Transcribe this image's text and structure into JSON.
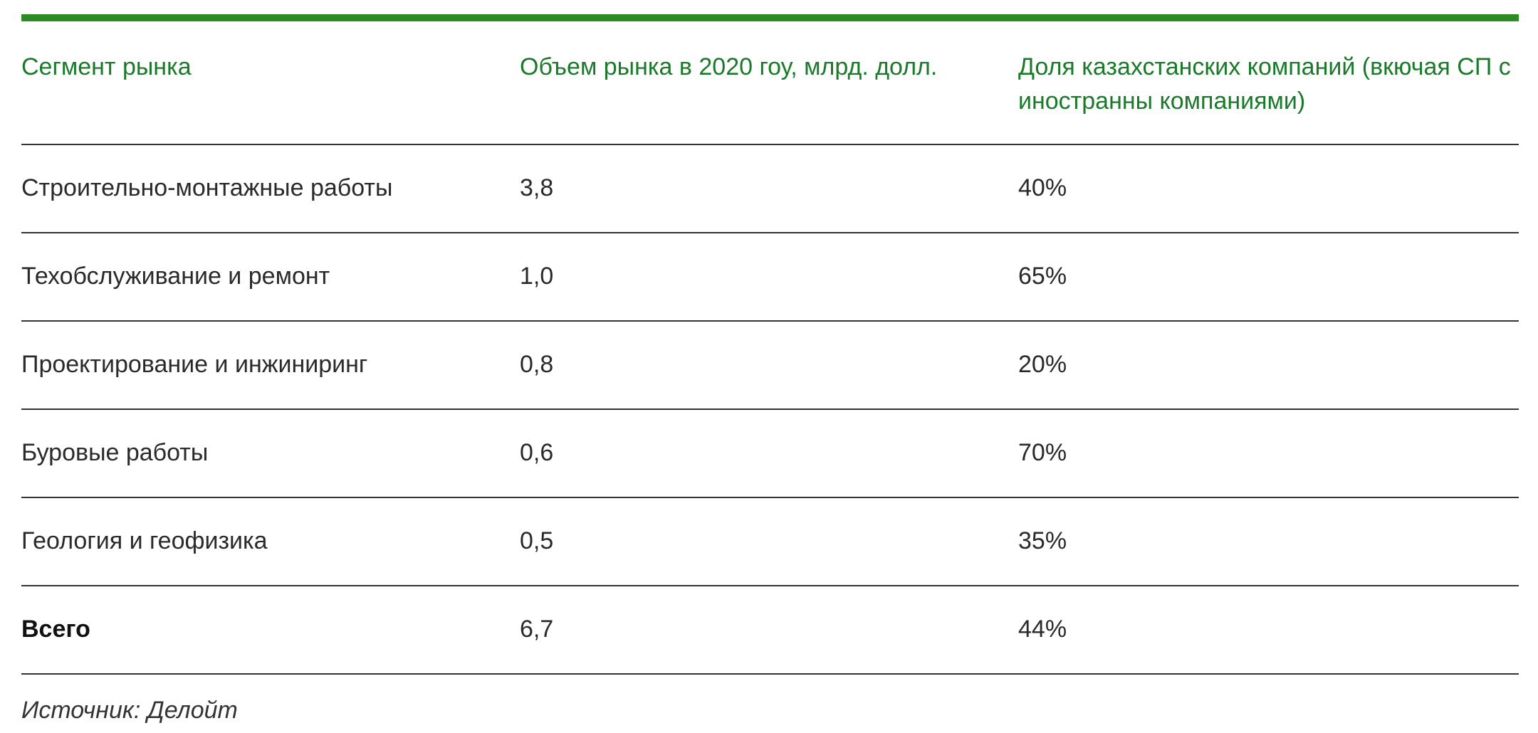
{
  "table": {
    "headers": [
      "Сегмент рынка",
      "Объем рынка в 2020 гоу, млрд. долл.",
      "Доля казахстанских компаний (вкючая СП с иностранны компаниями)"
    ],
    "rows": [
      {
        "segment": "Строительно-монтажные работы",
        "volume": "3,8",
        "share": "40%"
      },
      {
        "segment": "Техобслуживание и ремонт",
        "volume": "1,0",
        "share": "65%"
      },
      {
        "segment": "Проектирование и инжиниринг",
        "volume": "0,8",
        "share": "20%"
      },
      {
        "segment": "Буровые работы",
        "volume": "0,6",
        "share": "70%"
      },
      {
        "segment": "Геология и геофизика",
        "volume": "0,5",
        "share": "35%"
      },
      {
        "segment": "Всего",
        "volume": "6,7",
        "share": "44%"
      }
    ]
  },
  "source": "Источник: Делойт",
  "colors": {
    "accent": "#2e8b22",
    "header_text": "#1a7a2a",
    "rule": "#333333"
  }
}
